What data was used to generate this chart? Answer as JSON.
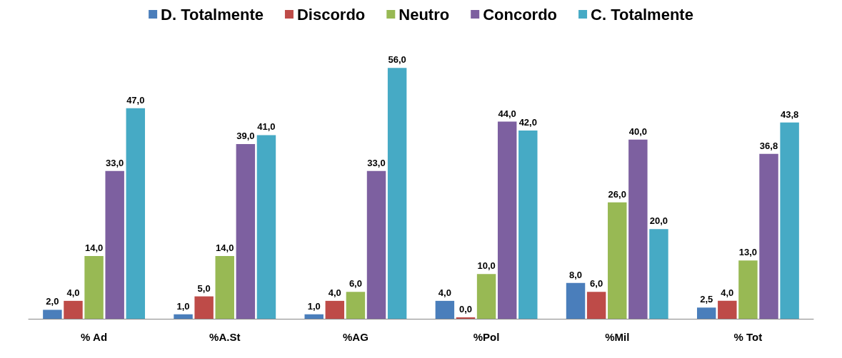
{
  "chart_data": {
    "type": "bar",
    "categories": [
      "% Ad",
      "%A.St",
      "%AG",
      "%Pol",
      "%Mil",
      "% Tot"
    ],
    "series": [
      {
        "name": "D. Totalmente",
        "color": "#4a7ebb",
        "values": [
          2.0,
          1.0,
          1.0,
          4.0,
          8.0,
          2.5
        ],
        "value_labels": [
          "2,0",
          "1,0",
          "1,0",
          "4,0",
          "8,0",
          "2,5"
        ]
      },
      {
        "name": "Discordo",
        "color": "#be4b48",
        "values": [
          4.0,
          5.0,
          4.0,
          0.0,
          6.0,
          4.0
        ],
        "value_labels": [
          "4,0",
          "5,0",
          "4,0",
          "0,0",
          "6,0",
          "4,0"
        ]
      },
      {
        "name": "Neutro",
        "color": "#98b954",
        "values": [
          14.0,
          14.0,
          6.0,
          10.0,
          26.0,
          13.0
        ],
        "value_labels": [
          "14,0",
          "14,0",
          "6,0",
          "10,0",
          "26,0",
          "13,0"
        ]
      },
      {
        "name": "Concordo",
        "color": "#7d60a0",
        "values": [
          33.0,
          39.0,
          33.0,
          44.0,
          40.0,
          36.8
        ],
        "value_labels": [
          "33,0",
          "39,0",
          "33,0",
          "44,0",
          "40,0",
          "36,8"
        ]
      },
      {
        "name": "C. Totalmente",
        "color": "#46aac5",
        "values": [
          47.0,
          41.0,
          56.0,
          42.0,
          20.0,
          43.8
        ],
        "value_labels": [
          "47,0",
          "41,0",
          "56,0",
          "42,0",
          "20,0",
          "43,8"
        ]
      }
    ],
    "legend": "top",
    "grid": false
  }
}
